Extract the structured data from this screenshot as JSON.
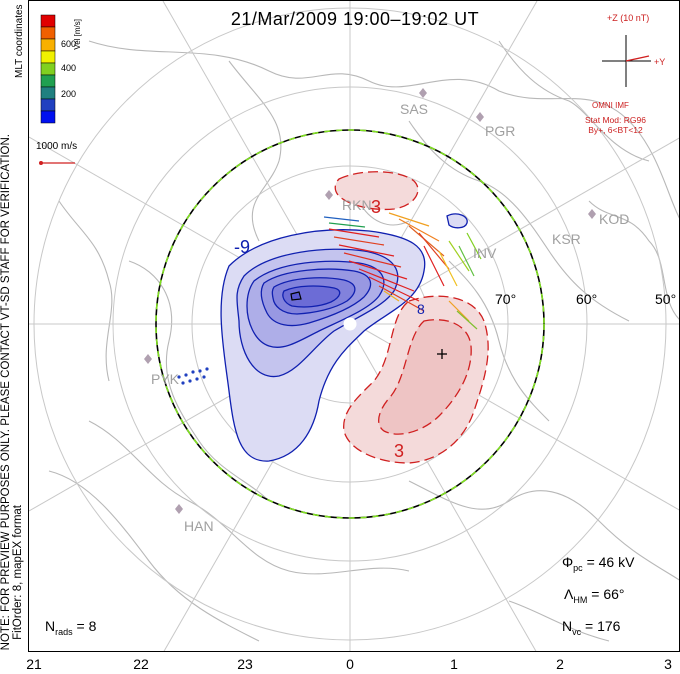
{
  "title": "21/Mar/2009 19:00–19:02 UT",
  "imf": {
    "header": "+Z (10 nT)",
    "plus_y": "+Y",
    "source": "OMNI IMF",
    "model_line1": "Stat Mod: RG96",
    "model_line2": "By+, 6<BT<12"
  },
  "colorbar": {
    "ticks": [
      "600",
      "400",
      "200"
    ],
    "label": "Vel [m/s]",
    "colors": [
      "#e00000",
      "#f06000",
      "#f8b000",
      "#f0f000",
      "#80d020",
      "#20a050",
      "#208080",
      "#2040c0",
      "#0010f0"
    ]
  },
  "coord_label": "MLT coordinates",
  "scale_label": "1000 m/s",
  "preview_note": "NOTE: FOR PREVIEW PURPOSES ONLY. PLEASE CONTACT VT-SD STAFF FOR VERIFICATION.",
  "fitorder_note": "FitOrder: 8, mapEX format",
  "stations": [
    {
      "name": "SAS"
    },
    {
      "name": "PGR"
    },
    {
      "name": "KOD"
    },
    {
      "name": "KSR"
    },
    {
      "name": "INV"
    },
    {
      "name": "RKN"
    },
    {
      "name": "PYK"
    },
    {
      "name": "HAN"
    }
  ],
  "latitudes": [
    "70°",
    "60°",
    "50°"
  ],
  "contour_labels": {
    "neg": "-9",
    "pos_top": "3",
    "pos_bottom": "3",
    "inner": "8"
  },
  "stats": {
    "phi_pc": {
      "symbol": "Φ",
      "sub": "pc",
      "value": " = 46 kV"
    },
    "lambda_hm": {
      "symbol": "Λ",
      "sub": "HM",
      "value": " = 66°"
    },
    "n_vc": {
      "symbol": "N",
      "sub": "vc",
      "value": " = 176"
    },
    "n_rads": {
      "symbol": "N",
      "sub": "rads",
      "value": " = 8"
    }
  },
  "mlt_hours": [
    "21",
    "22",
    "23",
    "0",
    "1",
    "2",
    "3"
  ],
  "colors": {
    "negative_fill": "#8080e8",
    "positive_fill": "#f0b0b0",
    "negative_line": "#1020b0",
    "positive_line": "#d02020",
    "coast": "#b8b8b8",
    "grid": "#c8c8c8"
  }
}
